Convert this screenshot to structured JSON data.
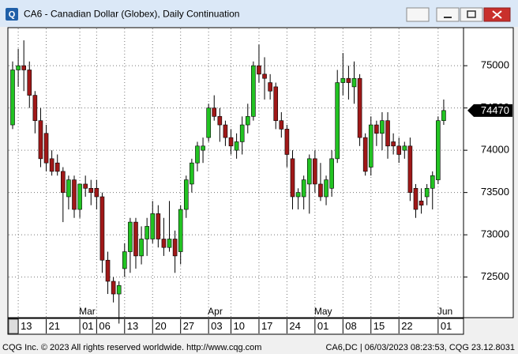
{
  "chart_data": {
    "type": "candlestick",
    "title": "CA6 - Canadian Dollar (Globex), Daily Continuation",
    "footer_left": "CQG Inc. © 2023 All rights reserved worldwide. http://www.cqg.com",
    "footer_right": "CA6,DC | 06/03/2023 08:23:53, CQG 23.12.8031",
    "categories": [
      null,
      "13",
      null,
      null,
      null,
      null,
      "21",
      null,
      null,
      null,
      null,
      null,
      "01",
      null,
      null,
      "06",
      null,
      null,
      null,
      null,
      "13",
      null,
      null,
      null,
      null,
      "20",
      null,
      null,
      null,
      null,
      "27",
      null,
      null,
      null,
      null,
      "03",
      null,
      null,
      null,
      "10",
      null,
      null,
      null,
      null,
      "17",
      null,
      null,
      null,
      null,
      "24",
      null,
      null,
      null,
      null,
      "01",
      null,
      null,
      null,
      null,
      "08",
      null,
      null,
      null,
      null,
      "15",
      null,
      null,
      null,
      null,
      "22",
      null,
      null,
      null,
      null,
      null,
      null,
      "01",
      null
    ],
    "months": [
      null,
      null,
      null,
      null,
      null,
      null,
      null,
      null,
      null,
      null,
      null,
      null,
      "Mar",
      null,
      null,
      null,
      null,
      null,
      null,
      null,
      null,
      null,
      null,
      null,
      null,
      null,
      null,
      null,
      null,
      null,
      null,
      null,
      null,
      null,
      null,
      "Apr",
      null,
      null,
      null,
      null,
      null,
      null,
      null,
      null,
      null,
      null,
      null,
      null,
      null,
      null,
      null,
      null,
      null,
      null,
      "May",
      null,
      null,
      null,
      null,
      null,
      null,
      null,
      null,
      null,
      null,
      null,
      null,
      null,
      null,
      null,
      null,
      null,
      null,
      null,
      null,
      null,
      "Jun",
      null
    ],
    "open": [
      74300,
      74950,
      75000,
      74950,
      74650,
      74350,
      74200,
      73900,
      73850,
      73750,
      73450,
      73650,
      73300,
      73600,
      73550,
      73550,
      73450,
      72700,
      72450,
      72300,
      72600,
      72800,
      73150,
      72750,
      72950,
      72950,
      73250,
      72950,
      72850,
      72950,
      72800,
      73300,
      73600,
      73850,
      74000,
      74150,
      74500,
      74400,
      74300,
      74150,
      74000,
      74100,
      74300,
      74400,
      75000,
      74900,
      74800,
      74750,
      74350,
      74250,
      73900,
      73450,
      73450,
      73600,
      73900,
      73600,
      73450,
      73550,
      73900,
      74800,
      74850,
      74750,
      74850,
      74150,
      73800,
      74300,
      74200,
      74350,
      74100,
      74050,
      74000,
      74050,
      73550,
      73400,
      73450,
      73550,
      73650,
      74350
    ],
    "high": [
      75050,
      75200,
      75300,
      75050,
      74700,
      74500,
      74300,
      74000,
      73950,
      73800,
      73700,
      73700,
      73600,
      73700,
      73650,
      73650,
      73500,
      72800,
      72500,
      72450,
      72900,
      73200,
      73200,
      73100,
      73200,
      73400,
      73350,
      73200,
      73400,
      73050,
      73350,
      73700,
      73900,
      74100,
      74150,
      74550,
      74650,
      74500,
      74350,
      74250,
      74200,
      74400,
      74550,
      75050,
      75250,
      75100,
      74900,
      74800,
      74450,
      74300,
      74000,
      73550,
      73700,
      73950,
      74000,
      73850,
      73700,
      74000,
      74950,
      75150,
      75000,
      75050,
      74900,
      74200,
      74400,
      74350,
      74450,
      74450,
      74200,
      74150,
      74100,
      74150,
      73600,
      73550,
      73600,
      73750,
      74400,
      74600
    ],
    "low": [
      74250,
      74750,
      74700,
      74500,
      74200,
      73800,
      73750,
      73700,
      73700,
      73150,
      73300,
      73200,
      73200,
      73450,
      73350,
      73300,
      72550,
      72300,
      72200,
      71950,
      72500,
      72550,
      72600,
      72650,
      72750,
      72900,
      72850,
      72750,
      72800,
      72550,
      72650,
      73200,
      73500,
      73750,
      73850,
      74100,
      74350,
      74100,
      74050,
      73950,
      73900,
      73950,
      74200,
      74350,
      74800,
      74600,
      74600,
      74250,
      74150,
      73800,
      73300,
      73300,
      73300,
      73250,
      73500,
      73400,
      73350,
      73450,
      73850,
      74650,
      74600,
      74550,
      74050,
      73700,
      73700,
      74050,
      74000,
      73900,
      73950,
      73850,
      73900,
      73400,
      73200,
      73250,
      73350,
      73300,
      73600,
      74300
    ],
    "close": [
      74950,
      75000,
      74950,
      74650,
      74350,
      73900,
      73850,
      73750,
      73750,
      73500,
      73650,
      73300,
      73600,
      73550,
      73500,
      73450,
      72700,
      72450,
      72300,
      72400,
      72800,
      73150,
      72750,
      72950,
      73100,
      73250,
      72950,
      72850,
      72950,
      72750,
      73300,
      73650,
      73850,
      74050,
      74050,
      74500,
      74400,
      74300,
      74150,
      74050,
      74100,
      74300,
      74400,
      75000,
      74900,
      74850,
      74700,
      74350,
      74250,
      73950,
      73450,
      73500,
      73650,
      73900,
      73600,
      73450,
      73650,
      73900,
      74800,
      74850,
      74800,
      74850,
      74150,
      73750,
      74300,
      74200,
      74350,
      74050,
      74050,
      73950,
      74050,
      73500,
      73300,
      73350,
      73550,
      73700,
      74350,
      74470
    ],
    "up_color": "#22c322",
    "down_color": "#a01818",
    "ylim": [
      72020,
      75450
    ],
    "yticks": [
      72500,
      73000,
      73500,
      74000,
      74500,
      75000
    ],
    "grid": true
  }
}
